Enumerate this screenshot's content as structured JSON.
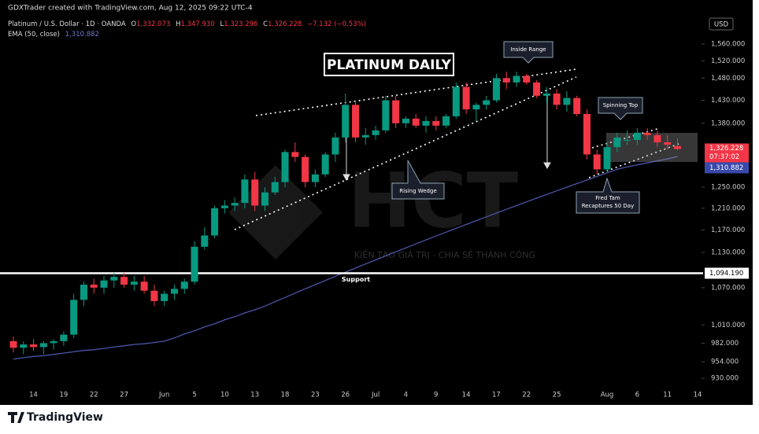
{
  "credit": "GDXTrader created with TradingView.com, Aug 12, 2025 09:22 UTC-4",
  "header": {
    "symbol": "Platinum / U.S. Dollar · 1D · OANDA",
    "ohlc": [
      {
        "key": "O",
        "value": "1,332.073"
      },
      {
        "key": "H",
        "value": "1,347.930"
      },
      {
        "key": "L",
        "value": "1,323.296"
      },
      {
        "key": "C",
        "value": "1,326.228"
      }
    ],
    "change": "−7.132 (−0.53%)"
  },
  "currency": "USD",
  "brand": "TradingView",
  "watermark": {
    "logo": "HCT",
    "slogan": "KIẾN TẠO GIÁ TRỊ - CHIA SẺ THÀNH CÔNG"
  },
  "chart_data": {
    "type": "candlestick",
    "title": "PLATINUM DAILY",
    "log_scale": true,
    "grid": false,
    "categories": [
      null,
      null,
      "14",
      null,
      null,
      "19",
      null,
      null,
      "22",
      null,
      null,
      "27",
      null,
      null,
      null,
      "Jun",
      null,
      null,
      "5",
      null,
      null,
      "10",
      null,
      null,
      "13",
      null,
      null,
      "18",
      null,
      null,
      "23",
      null,
      null,
      "26",
      null,
      null,
      "Jul",
      null,
      null,
      "4",
      null,
      null,
      "9",
      null,
      null,
      "14",
      null,
      null,
      "17",
      null,
      null,
      "22",
      null,
      null,
      "25",
      null,
      null,
      null,
      null,
      "Aug",
      null,
      null,
      "6",
      null,
      null,
      "11",
      null,
      null,
      "14"
    ],
    "series": [
      {
        "name": "Platinum / U.S. Dollar",
        "up_color": "#089981",
        "down_color": "#f23645",
        "open": [
          985,
          975,
          980,
          976,
          982,
          985,
          995,
          1050,
          1075,
          1070,
          1082,
          1088,
          1075,
          1080,
          1065,
          1048,
          1060,
          1068,
          1080,
          1140,
          1160,
          1210,
          1215,
          1220,
          1265,
          1215,
          1240,
          1260,
          1320,
          1310,
          1260,
          1275,
          1315,
          1350,
          1420,
          1350,
          1355,
          1365,
          1430,
          1380,
          1390,
          1375,
          1385,
          1375,
          1395,
          1460,
          1410,
          1420,
          1430,
          1480,
          1470,
          1485,
          1470,
          1440,
          1445,
          1420,
          1435,
          1400,
          1315,
          1285,
          1330,
          1345,
          1345,
          1360,
          1355,
          1340,
          1332.073,
          null,
          null
        ],
        "high": [
          992,
          985,
          988,
          985,
          988,
          1000,
          1060,
          1080,
          1085,
          1090,
          1095,
          1095,
          1090,
          1090,
          1075,
          1065,
          1075,
          1085,
          1150,
          1175,
          1215,
          1225,
          1230,
          1275,
          1280,
          1250,
          1270,
          1325,
          1340,
          1315,
          1285,
          1320,
          1360,
          1445,
          1430,
          1370,
          1375,
          1440,
          1440,
          1395,
          1400,
          1395,
          1395,
          1400,
          1470,
          1470,
          1425,
          1440,
          1490,
          1495,
          1495,
          1490,
          1475,
          1460,
          1455,
          1450,
          1440,
          1410,
          1325,
          1340,
          1360,
          1365,
          1370,
          1370,
          1365,
          1355,
          1347.93,
          null,
          null
        ],
        "low": [
          968,
          965,
          970,
          965,
          972,
          978,
          990,
          1040,
          1060,
          1060,
          1070,
          1070,
          1065,
          1060,
          1040,
          1040,
          1050,
          1060,
          1075,
          1135,
          1155,
          1200,
          1205,
          1210,
          1205,
          1205,
          1235,
          1250,
          1300,
          1250,
          1250,
          1270,
          1300,
          1340,
          1340,
          1335,
          1345,
          1360,
          1370,
          1370,
          1370,
          1360,
          1365,
          1370,
          1390,
          1400,
          1385,
          1410,
          1425,
          1455,
          1460,
          1465,
          1435,
          1425,
          1410,
          1405,
          1395,
          1305,
          1275,
          1280,
          1320,
          1335,
          1335,
          1345,
          1330,
          1325,
          1323.296,
          null,
          null
        ],
        "close": [
          975,
          980,
          976,
          982,
          985,
          995,
          1050,
          1075,
          1070,
          1082,
          1088,
          1075,
          1080,
          1065,
          1048,
          1060,
          1068,
          1080,
          1140,
          1160,
          1210,
          1215,
          1220,
          1265,
          1215,
          1240,
          1260,
          1320,
          1310,
          1260,
          1275,
          1315,
          1350,
          1420,
          1350,
          1355,
          1365,
          1430,
          1380,
          1390,
          1375,
          1385,
          1375,
          1395,
          1460,
          1410,
          1420,
          1430,
          1480,
          1470,
          1485,
          1470,
          1440,
          1445,
          1420,
          1435,
          1400,
          1315,
          1285,
          1330,
          1350,
          1345,
          1360,
          1355,
          1340,
          1335,
          1326.228,
          null,
          null
        ],
        "price_label": "1,326.228",
        "countdown": "07:37:02"
      },
      {
        "name": "EMA (50, close)",
        "color": "#4a55a8",
        "values": [
          958,
          960,
          962,
          963,
          965,
          967,
          969,
          971,
          972,
          974,
          976,
          978,
          980,
          981,
          983,
          985,
          990,
          996,
          1001,
          1007,
          1012,
          1018,
          1023,
          1029,
          1034,
          1040,
          1047,
          1054,
          1061,
          1068,
          1075,
          1082,
          1089,
          1096,
          1103,
          1110,
          1117,
          1124,
          1131,
          1138,
          1145,
          1152,
          1159,
          1166,
          1173,
          1180,
          1187,
          1194,
          1201,
          1208,
          1215,
          1222,
          1229,
          1236,
          1243,
          1250,
          1257,
          1264,
          1271,
          1278,
          1285,
          1290,
          1294,
          1298,
          1302,
          1306,
          1310.882,
          null,
          null
        ],
        "value_label": "1,310.882"
      }
    ],
    "support": {
      "value": 1094.19,
      "label": "1,094.190",
      "text": "Support"
    },
    "ylim": [
      920,
      1630
    ],
    "yticks": [
      {
        "value": 1560,
        "label": "1,560.000"
      },
      {
        "value": 1520,
        "label": "1,520.000"
      },
      {
        "value": 1480,
        "label": "1,480.000"
      },
      {
        "value": 1430,
        "label": "1,430.000"
      },
      {
        "value": 1380,
        "label": "1,380.000"
      },
      {
        "value": 1250,
        "label": "1,250.000"
      },
      {
        "value": 1210,
        "label": "1,210.000"
      },
      {
        "value": 1170,
        "label": "1,170.000"
      },
      {
        "value": 1130,
        "label": "1,130.000"
      },
      {
        "value": 1070,
        "label": "1,070.000"
      },
      {
        "value": 1010,
        "label": "1,010.000"
      },
      {
        "value": 982,
        "label": "982.000"
      },
      {
        "value": 954,
        "label": "954.000"
      },
      {
        "value": 930,
        "label": "930.000"
      }
    ],
    "annotations": [
      "Inside Range",
      "Spinning Top",
      "Rising Wedge",
      "Fred Tam",
      "Recaptures 50 Day"
    ]
  }
}
